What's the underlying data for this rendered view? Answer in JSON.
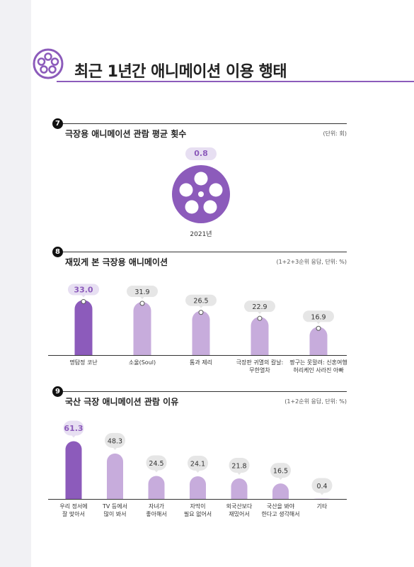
{
  "page_title": "최근 1년간 애니메이션 이용 행태",
  "colors": {
    "accent": "#8c5bbb",
    "light_bar": "#c7acdc",
    "badge_bg": "#e7dff2",
    "gray_badge": "#e6e6e6"
  },
  "sections": [
    {
      "number": "7",
      "title": "극장용 애니메이션 관람 평균 횟수",
      "unit": "(단위: 회)"
    },
    {
      "number": "8",
      "title": "재밌게 본 극장용 애니메이션",
      "unit": "(1+2+3순위 응답, 단위: %)"
    },
    {
      "number": "9",
      "title": "국산 극장 애니메이션 관람 이유",
      "unit": "(1+2순위 응답, 단위: %)"
    }
  ],
  "chart_data": [
    {
      "type": "single_value",
      "value": 0.8,
      "year_label": "2021년"
    },
    {
      "type": "bar",
      "categories": [
        [
          "명탐정 코난"
        ],
        [
          "소울(Soul)"
        ],
        [
          "톰과 제리"
        ],
        [
          "극장판 귀멸의 칼날:",
          "무한열차"
        ],
        [
          "짱구는 못말려: 신혼여행",
          "허리케인 사라진 아빠"
        ]
      ],
      "values": [
        33.0,
        31.9,
        26.5,
        22.9,
        16.9
      ],
      "value_labels": [
        "33.0",
        "31.9",
        "26.5",
        "22.9",
        "16.9"
      ],
      "ylim": [
        0,
        40
      ],
      "highlight_index": 0
    },
    {
      "type": "bar",
      "categories": [
        [
          "우리 정서에",
          "잘 맞아서"
        ],
        [
          "TV 등에서",
          "많이 봐서"
        ],
        [
          "자녀가",
          "좋아해서"
        ],
        [
          "자막이",
          "필요 없어서"
        ],
        [
          "외국산보다",
          "재밌어서"
        ],
        [
          "국산을 봐야",
          "한다고 생각해서"
        ],
        [
          "기타"
        ]
      ],
      "values": [
        61.3,
        48.3,
        24.5,
        24.1,
        21.8,
        16.5,
        0.4
      ],
      "value_labels": [
        "61.3",
        "48.3",
        "24.5",
        "24.1",
        "21.8",
        "16.5",
        "0.4"
      ],
      "ylim": [
        0,
        70
      ],
      "highlight_index": 0
    }
  ]
}
